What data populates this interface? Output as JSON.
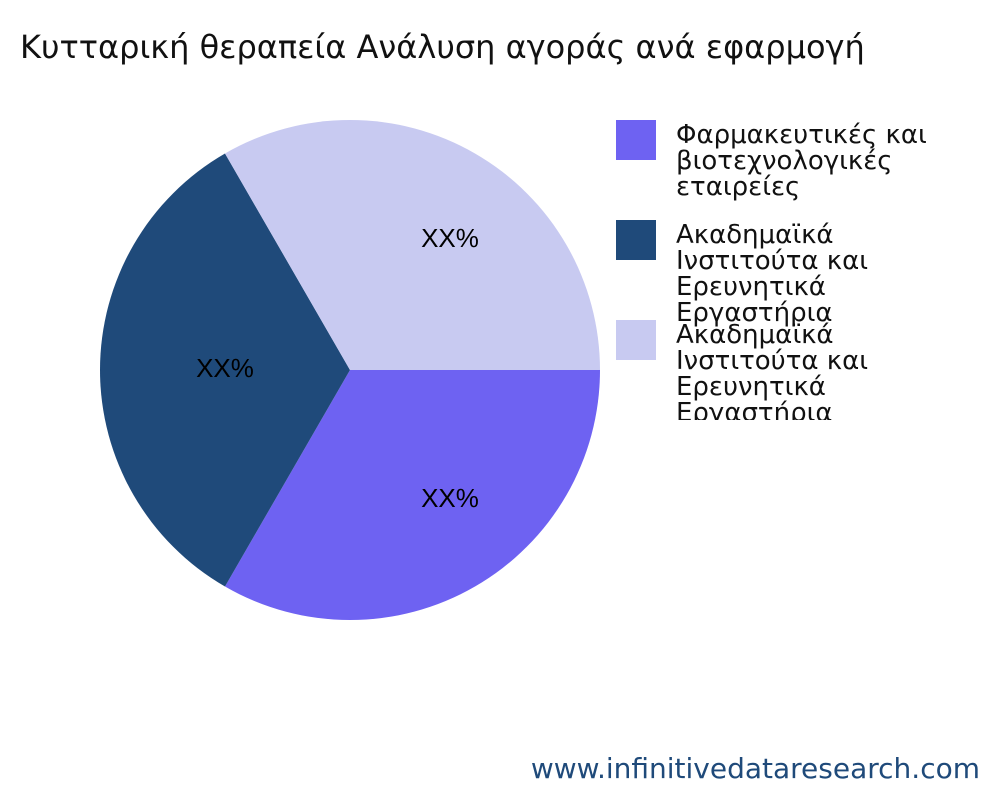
{
  "chart_data": {
    "type": "pie",
    "title": "Κυτταρική θεραπεία Ανάλυση αγοράς ανά εφαρμογή",
    "categories": [
      "Φαρμακευτικές και βιοτεχνολογικές εταιρείες",
      "Ακαδημαϊκά Ινστιτούτα και Ερευνητικά Εργαστήρια",
      "Ακαδημαϊκά Ινστιτούτα και Ερευνητικά Εργαστήρια"
    ],
    "values": [
      33.3,
      33.3,
      33.3
    ],
    "value_labels": [
      "XX%",
      "XX%",
      "XX%"
    ],
    "colors": [
      "#6e62f2",
      "#1f4a7a",
      "#c8caf1"
    ],
    "footer": "www.infinitivedataresearch.com"
  }
}
